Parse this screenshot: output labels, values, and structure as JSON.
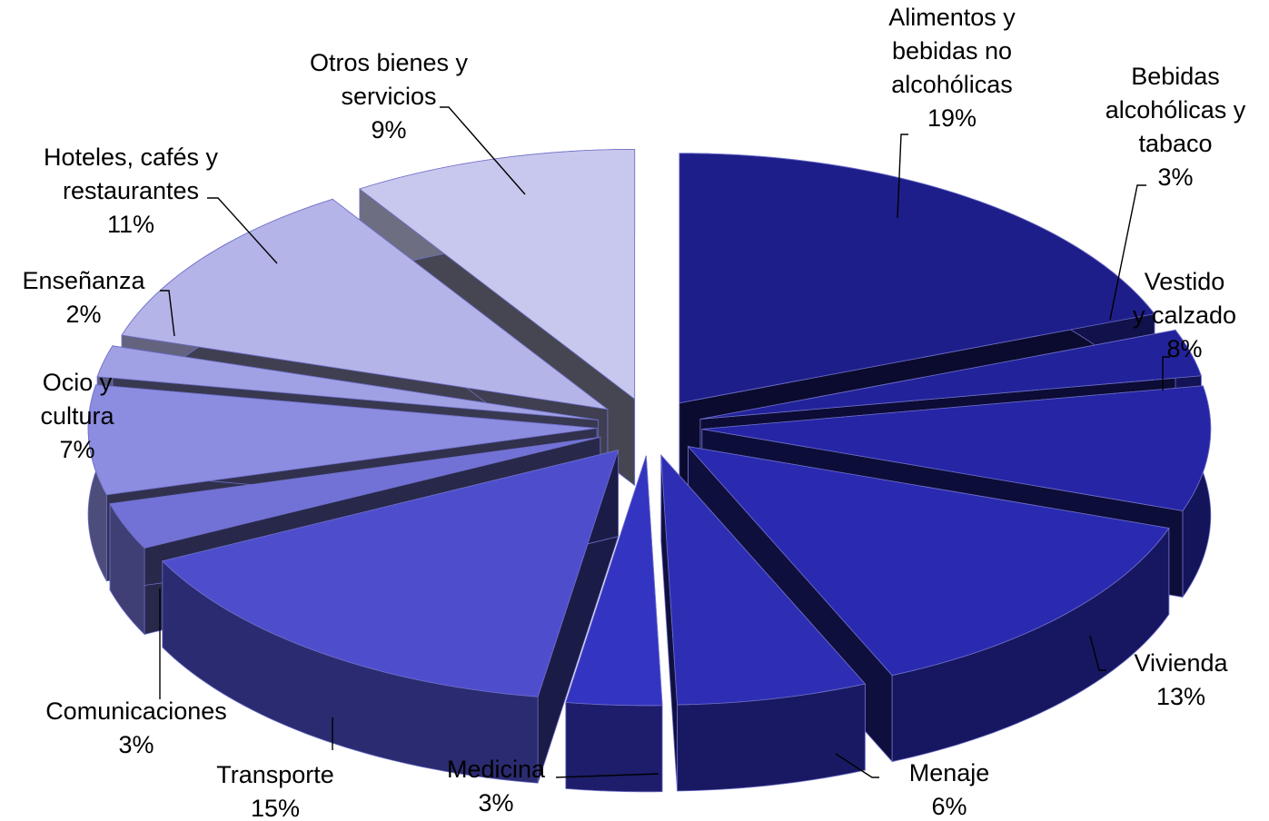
{
  "chart_data": {
    "type": "pie",
    "style": "3d-exploded",
    "slices": [
      {
        "label": "Alimentos y bebidas no alcohólicas",
        "lines": [
          "Alimentos y",
          "bebidas no",
          "alcohólicas"
        ],
        "value": 19,
        "pct_label": "19%",
        "color": "#1e1e8a"
      },
      {
        "label": "Bebidas alcohólicas y tabaco",
        "lines": [
          "Bebidas",
          "alcohólicas y",
          "tabaco"
        ],
        "value": 3,
        "pct_label": "3%",
        "color": "#22229a"
      },
      {
        "label": "Vestido y calzado",
        "lines": [
          "Vestido",
          "y calzado"
        ],
        "value": 8,
        "pct_label": "8%",
        "color": "#2525a5"
      },
      {
        "label": "Vivienda",
        "lines": [
          "Vivienda"
        ],
        "value": 13,
        "pct_label": "13%",
        "color": "#2a2ab0"
      },
      {
        "label": "Menaje",
        "lines": [
          "Menaje"
        ],
        "value": 6,
        "pct_label": "6%",
        "color": "#2e2eb4"
      },
      {
        "label": "Medicina",
        "lines": [
          "Medicina"
        ],
        "value": 3,
        "pct_label": "3%",
        "color": "#3434c2"
      },
      {
        "label": "Transporte",
        "lines": [
          "Transporte"
        ],
        "value": 15,
        "pct_label": "15%",
        "color": "#4e4ecd"
      },
      {
        "label": "Comunicaciones",
        "lines": [
          "Comunicaciones"
        ],
        "value": 3,
        "pct_label": "3%",
        "color": "#7272d6"
      },
      {
        "label": "Ocio y cultura",
        "lines": [
          "Ocio y",
          "cultura"
        ],
        "value": 7,
        "pct_label": "7%",
        "color": "#8c8ce0"
      },
      {
        "label": "Enseñanza",
        "lines": [
          "Enseñanza"
        ],
        "value": 2,
        "pct_label": "2%",
        "color": "#a0a0e4"
      },
      {
        "label": "Hoteles, cafés y restaurantes",
        "lines": [
          "Hoteles, cafés y",
          "restaurantes"
        ],
        "value": 11,
        "pct_label": "11%",
        "color": "#b4b4e8"
      },
      {
        "label": "Otros bienes y servicios",
        "lines": [
          "Otros bienes y",
          "servicios"
        ],
        "value": 9,
        "pct_label": "9%",
        "color": "#c8c8ee"
      }
    ]
  }
}
